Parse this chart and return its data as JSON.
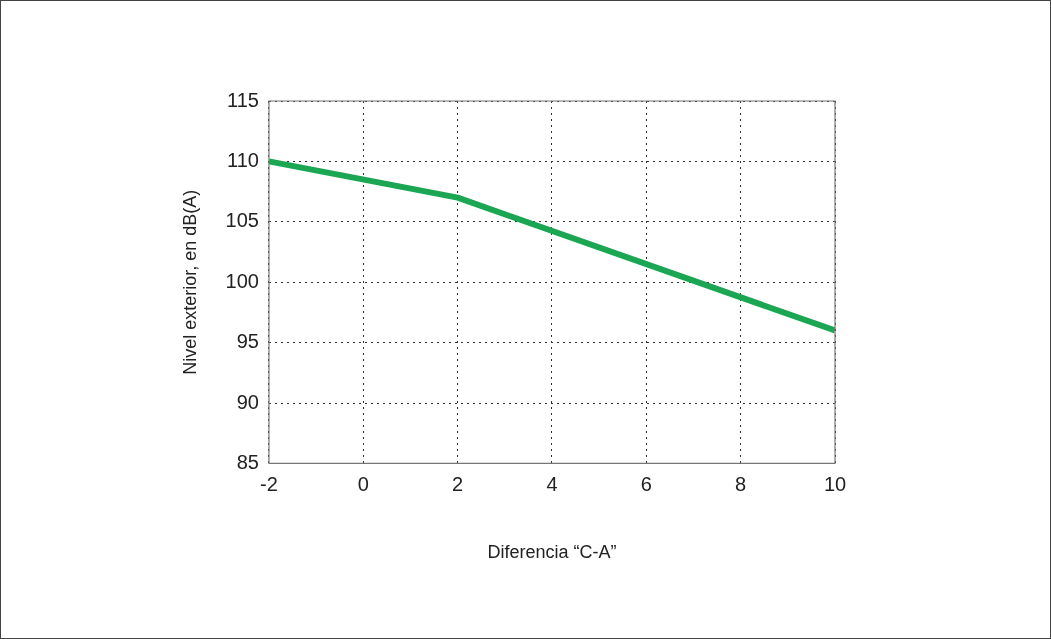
{
  "chart_data": {
    "type": "line",
    "xlabel": "Diferencia “C-A”",
    "ylabel": "Nivel exterior, en dB(A)",
    "x": [
      -2,
      2,
      10
    ],
    "series": [
      {
        "color": "#1aa653",
        "values": [
          110,
          107,
          96
        ]
      }
    ],
    "xlim": [
      -2,
      10
    ],
    "xticks": [
      -2,
      0,
      2,
      4,
      6,
      8,
      10
    ],
    "ylim": [
      85,
      115
    ],
    "yticks": [
      85,
      90,
      95,
      100,
      105,
      110,
      115
    ],
    "grid": true,
    "legend": false,
    "marker": "none",
    "line_style": "solid"
  }
}
